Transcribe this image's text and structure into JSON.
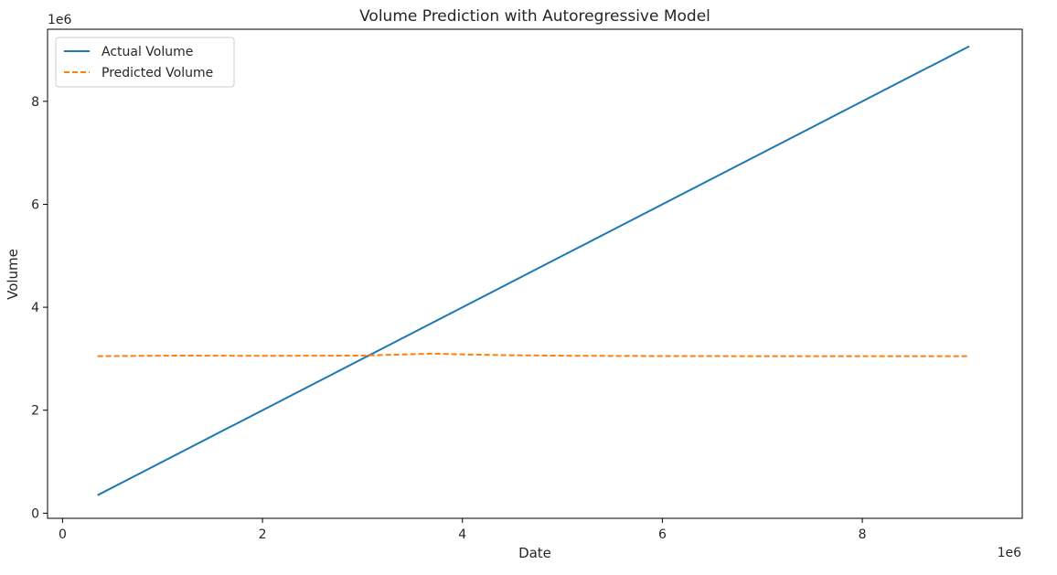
{
  "chart_data": {
    "type": "line",
    "title": "Volume Prediction with Autoregressive Model",
    "xlabel": "Date",
    "ylabel": "Volume",
    "x_offset_text": "1e6",
    "y_offset_text": "1e6",
    "xlim": [
      -150000,
      9600000
    ],
    "ylim": [
      -100000,
      9400000
    ],
    "x_ticks": [
      0,
      2000000,
      4000000,
      6000000,
      8000000
    ],
    "x_tick_labels": [
      "0",
      "2",
      "4",
      "6",
      "8"
    ],
    "y_ticks": [
      0,
      2000000,
      4000000,
      6000000,
      8000000
    ],
    "y_tick_labels": [
      "0",
      "2",
      "4",
      "6",
      "8"
    ],
    "grid": false,
    "legend_position": "top-left",
    "series": [
      {
        "name": "Actual Volume",
        "color": "#1f77b4",
        "style": "solid",
        "x": [
          350000,
          9070000
        ],
        "y": [
          350000,
          9070000
        ]
      },
      {
        "name": "Predicted Volume",
        "color": "#ff7f0e",
        "style": "dashed",
        "x": [
          350000,
          1200000,
          2000000,
          3000000,
          3700000,
          3800000,
          4000000,
          4400000,
          5100000,
          6000000,
          7000000,
          8000000,
          9070000
        ],
        "y": [
          3050000,
          3060000,
          3055000,
          3060000,
          3100000,
          3095000,
          3085000,
          3070000,
          3058000,
          3052000,
          3050000,
          3050000,
          3050000
        ]
      }
    ]
  }
}
